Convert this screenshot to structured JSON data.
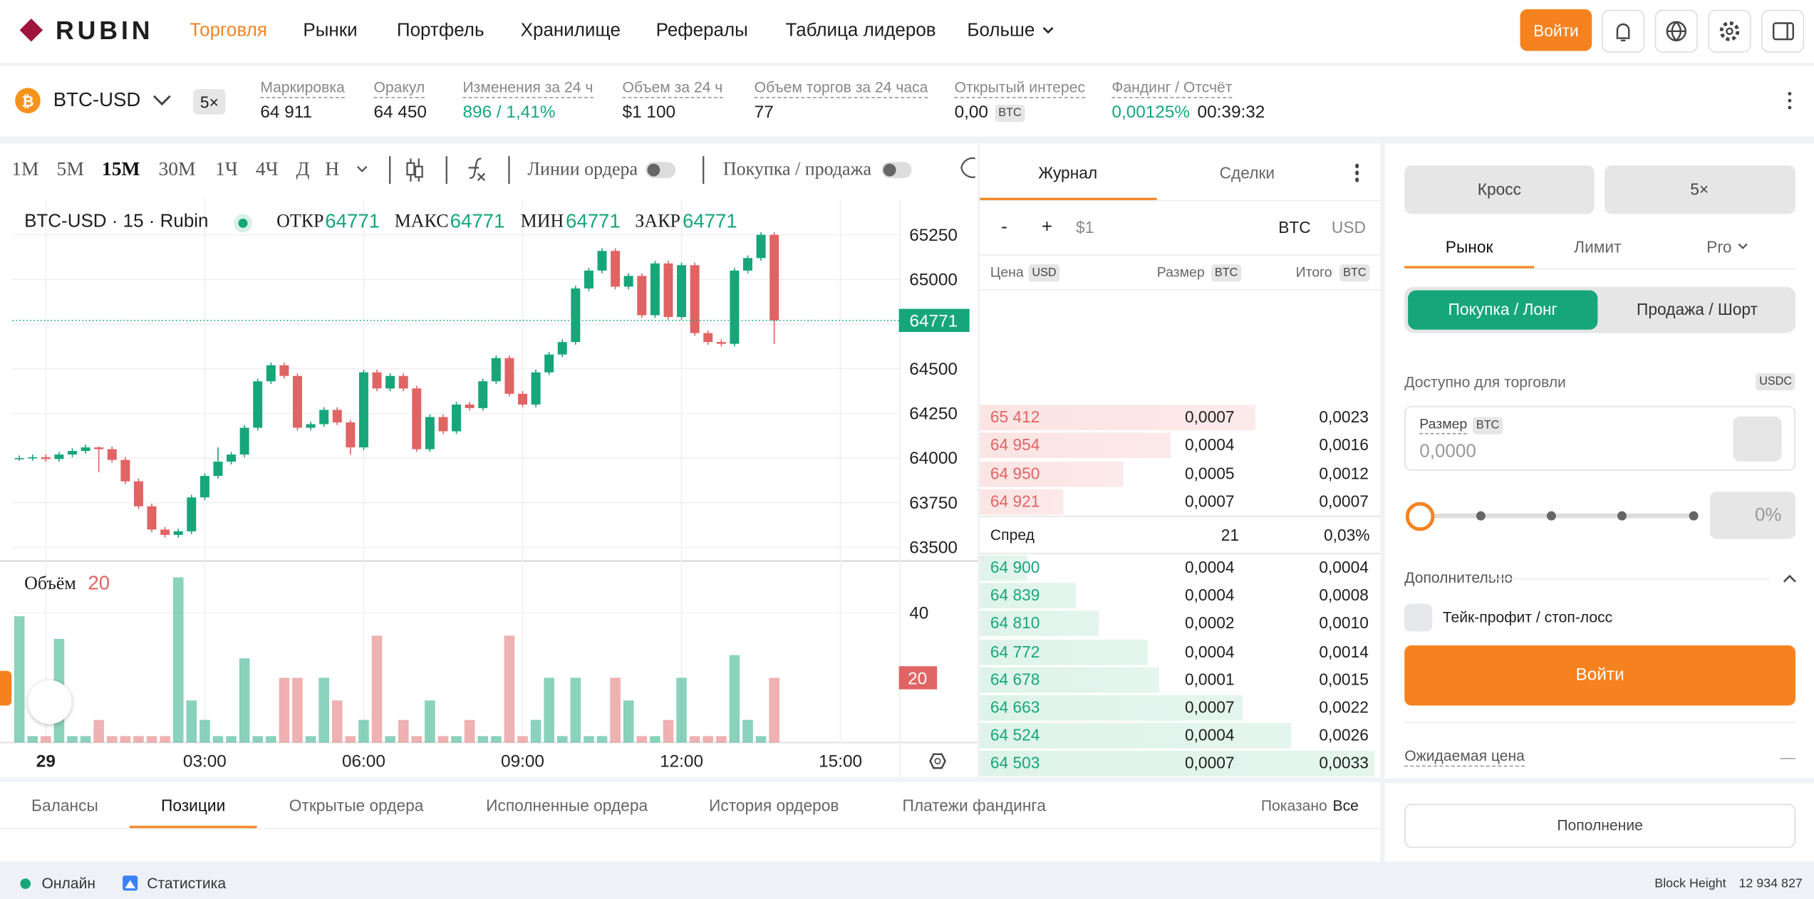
{
  "header": {
    "logo": "RUBIN",
    "nav": [
      "Торговля",
      "Рынки",
      "Портфель",
      "Хранилище",
      "Рефералы",
      "Таблица лидеров",
      "Больше"
    ],
    "login": "Войти"
  },
  "ticker": {
    "symbol": "BTC-USD",
    "leverage": "5×",
    "stats": [
      {
        "label": "Маркировка",
        "value": "64 911"
      },
      {
        "label": "Оракул",
        "value": "64 450"
      },
      {
        "label": "Изменения за 24 ч",
        "value": "896 / 1,41%"
      },
      {
        "label": "Объем за 24 ч",
        "value": "$1 100"
      },
      {
        "label": "Объем торгов за 24 часа",
        "value": "77"
      },
      {
        "label": "Открытый интерес",
        "value": "0,00",
        "unit": "BTC"
      },
      {
        "label": "Фандинг / Отсчёт",
        "value": "0,00125%",
        "countdown": "00:39:32"
      }
    ]
  },
  "chart_toolbar": {
    "intervals": [
      "1M",
      "5M",
      "15M",
      "30M",
      "1Ч",
      "4Ч",
      "Д",
      "Н"
    ],
    "order_lines": "Линии ордера",
    "buy_sell": "Покупка / продажа"
  },
  "chart_data": {
    "type": "candlestick",
    "title": "BTC-USD · 15 · Rubin",
    "legend": [
      {
        "label": "ОТКР",
        "value": 64771
      },
      {
        "label": "МАКС",
        "value": 64771
      },
      {
        "label": "МИН",
        "value": 64771
      },
      {
        "label": "ЗАКР",
        "value": 64771
      }
    ],
    "volume_label": "Объём",
    "candles": [
      [
        64000,
        64015,
        63985,
        64000
      ],
      [
        64000,
        64020,
        63985,
        64005
      ],
      [
        64005,
        64020,
        63980,
        63995
      ],
      [
        63995,
        64035,
        63980,
        64020
      ],
      [
        64020,
        64055,
        64005,
        64040
      ],
      [
        64040,
        64075,
        64025,
        64060
      ],
      [
        64060,
        64065,
        63920,
        64050
      ],
      [
        64050,
        64065,
        63975,
        63990
      ],
      [
        63990,
        64005,
        63855,
        63870
      ],
      [
        63870,
        63885,
        63715,
        63730
      ],
      [
        63730,
        63745,
        63585,
        63600
      ],
      [
        63600,
        63615,
        63555,
        63570
      ],
      [
        63570,
        63605,
        63555,
        63590
      ],
      [
        63590,
        63795,
        63575,
        63780
      ],
      [
        63780,
        63915,
        63765,
        63900
      ],
      [
        63900,
        64060,
        63885,
        63980
      ],
      [
        63980,
        64035,
        63965,
        64020
      ],
      [
        64020,
        64185,
        64005,
        64170
      ],
      [
        64170,
        64445,
        64155,
        64430
      ],
      [
        64430,
        64535,
        64415,
        64520
      ],
      [
        64520,
        64535,
        64445,
        64460
      ],
      [
        64460,
        64475,
        64155,
        64170
      ],
      [
        64170,
        64205,
        64155,
        64190
      ],
      [
        64190,
        64285,
        64175,
        64270
      ],
      [
        64270,
        64285,
        64185,
        64200
      ],
      [
        64200,
        64215,
        64020,
        64060
      ],
      [
        64060,
        64495,
        64045,
        64480
      ],
      [
        64480,
        64495,
        64375,
        64390
      ],
      [
        64390,
        64475,
        64375,
        64460
      ],
      [
        64460,
        64475,
        64375,
        64390
      ],
      [
        64390,
        64405,
        64035,
        64050
      ],
      [
        64050,
        64245,
        64035,
        64230
      ],
      [
        64230,
        64245,
        64135,
        64150
      ],
      [
        64150,
        64315,
        64135,
        64300
      ],
      [
        64300,
        64315,
        64265,
        64280
      ],
      [
        64280,
        64445,
        64265,
        64430
      ],
      [
        64430,
        64575,
        64415,
        64560
      ],
      [
        64560,
        64575,
        64345,
        64360
      ],
      [
        64360,
        64375,
        64285,
        64300
      ],
      [
        64300,
        64495,
        64285,
        64480
      ],
      [
        64480,
        64595,
        64465,
        64580
      ],
      [
        64580,
        64665,
        64565,
        64650
      ],
      [
        64650,
        64965,
        64635,
        64950
      ],
      [
        64950,
        65065,
        64935,
        65050
      ],
      [
        65050,
        65175,
        65035,
        65160
      ],
      [
        65160,
        65175,
        64945,
        64960
      ],
      [
        64960,
        65035,
        64945,
        65020
      ],
      [
        65020,
        65035,
        64785,
        64800
      ],
      [
        64800,
        65105,
        64785,
        65090
      ],
      [
        65090,
        65105,
        64775,
        64790
      ],
      [
        64790,
        65095,
        64775,
        65080
      ],
      [
        65080,
        65095,
        64685,
        64700
      ],
      [
        64700,
        64715,
        64635,
        64650
      ],
      [
        64650,
        64665,
        64625,
        64640
      ],
      [
        64640,
        65065,
        64625,
        65050
      ],
      [
        65050,
        65135,
        65035,
        65120
      ],
      [
        65120,
        65265,
        65105,
        65250
      ],
      [
        65250,
        65265,
        64640,
        64771
      ]
    ],
    "volumes": [
      39,
      2,
      2,
      32,
      2,
      2,
      7,
      2,
      2,
      2,
      2,
      2,
      51,
      13,
      7,
      2,
      2,
      26,
      2,
      2,
      20,
      20,
      2,
      20,
      13,
      2,
      7,
      33,
      2,
      7,
      2,
      13,
      2,
      2,
      7,
      2,
      2,
      33,
      2,
      7,
      20,
      2,
      20,
      2,
      2,
      20,
      13,
      2,
      2,
      7,
      20,
      2,
      2,
      2,
      27,
      7,
      2,
      20
    ],
    "ylim": [
      63424,
      65451
    ],
    "yticks": [
      63500,
      63750,
      64000,
      64250,
      64500,
      64750,
      65000,
      65250
    ],
    "volume_ylim": [
      0,
      55.7
    ],
    "volume_yticks": [
      40
    ],
    "xlim": [
      -0.5,
      66.5
    ],
    "xticks": [
      {
        "value": 2,
        "label": "29"
      },
      {
        "value": 14,
        "label": "03:00"
      },
      {
        "value": 26,
        "label": "06:00"
      },
      {
        "value": 38,
        "label": "09:00"
      },
      {
        "value": 50,
        "label": "12:00"
      },
      {
        "value": 62,
        "label": "15:00"
      }
    ],
    "up_color": "#16a67a",
    "down_color": "#e06464",
    "grid": true
  },
  "orderbook": {
    "tabs": [
      "Журнал",
      "Сделки"
    ],
    "minus": "-",
    "plus": "+",
    "step": "$1",
    "units": [
      "BTC",
      "USD"
    ],
    "columns": [
      {
        "name": "Цена",
        "unit": "USD"
      },
      {
        "name": "Размер",
        "unit": "BTC"
      },
      {
        "name": "Итого",
        "unit": "BTC"
      }
    ],
    "asks": [
      [
        "65 412",
        "0,0007",
        "0,0023"
      ],
      [
        "64 954",
        "0,0004",
        "0,0016"
      ],
      [
        "64 950",
        "0,0005",
        "0,0012"
      ],
      [
        "64 921",
        "0,0007",
        "0,0007"
      ]
    ],
    "spread": {
      "label": "Спред",
      "value": "21",
      "percent": "0,03%"
    },
    "bids": [
      [
        "64 900",
        "0,0004",
        "0,0004"
      ],
      [
        "64 839",
        "0,0004",
        "0,0008"
      ],
      [
        "64 810",
        "0,0002",
        "0,0010"
      ],
      [
        "64 772",
        "0,0004",
        "0,0014"
      ],
      [
        "64 678",
        "0,0001",
        "0,0015"
      ],
      [
        "64 663",
        "0,0007",
        "0,0022"
      ],
      [
        "64 524",
        "0,0004",
        "0,0026"
      ],
      [
        "64 503",
        "0,0007",
        "0,0033"
      ]
    ]
  },
  "trade": {
    "margin_mode": "Кросс",
    "leverage": "5×",
    "order_types": [
      "Рынок",
      "Лимит",
      "Pro"
    ],
    "sides": [
      "Покупка / Лонг",
      "Продажа / Шорт"
    ],
    "available": "Доступно для торговли",
    "available_unit": "USDC",
    "size_label": "Размер",
    "size_unit": "BTC",
    "size_placeholder": "0,0000",
    "percent": "0%",
    "advanced": "Дополнительно",
    "tp_sl": "Тейк-профит / стоп-лосс",
    "submit": "Войти",
    "expected_price": "Ожидаемая цена",
    "expected_value": "—",
    "deposit": "Пополнение"
  },
  "positions": {
    "tabs": [
      "Балансы",
      "Позиции",
      "Открытые ордера",
      "Исполненные ордера",
      "История ордеров",
      "Платежи фандинга"
    ],
    "shown_label": "Показано",
    "shown_value": "Все"
  },
  "footer": {
    "status": "Онлайн",
    "stats": "Статистика",
    "block_height_label": "Block Height",
    "block_height": "12 934 827"
  }
}
